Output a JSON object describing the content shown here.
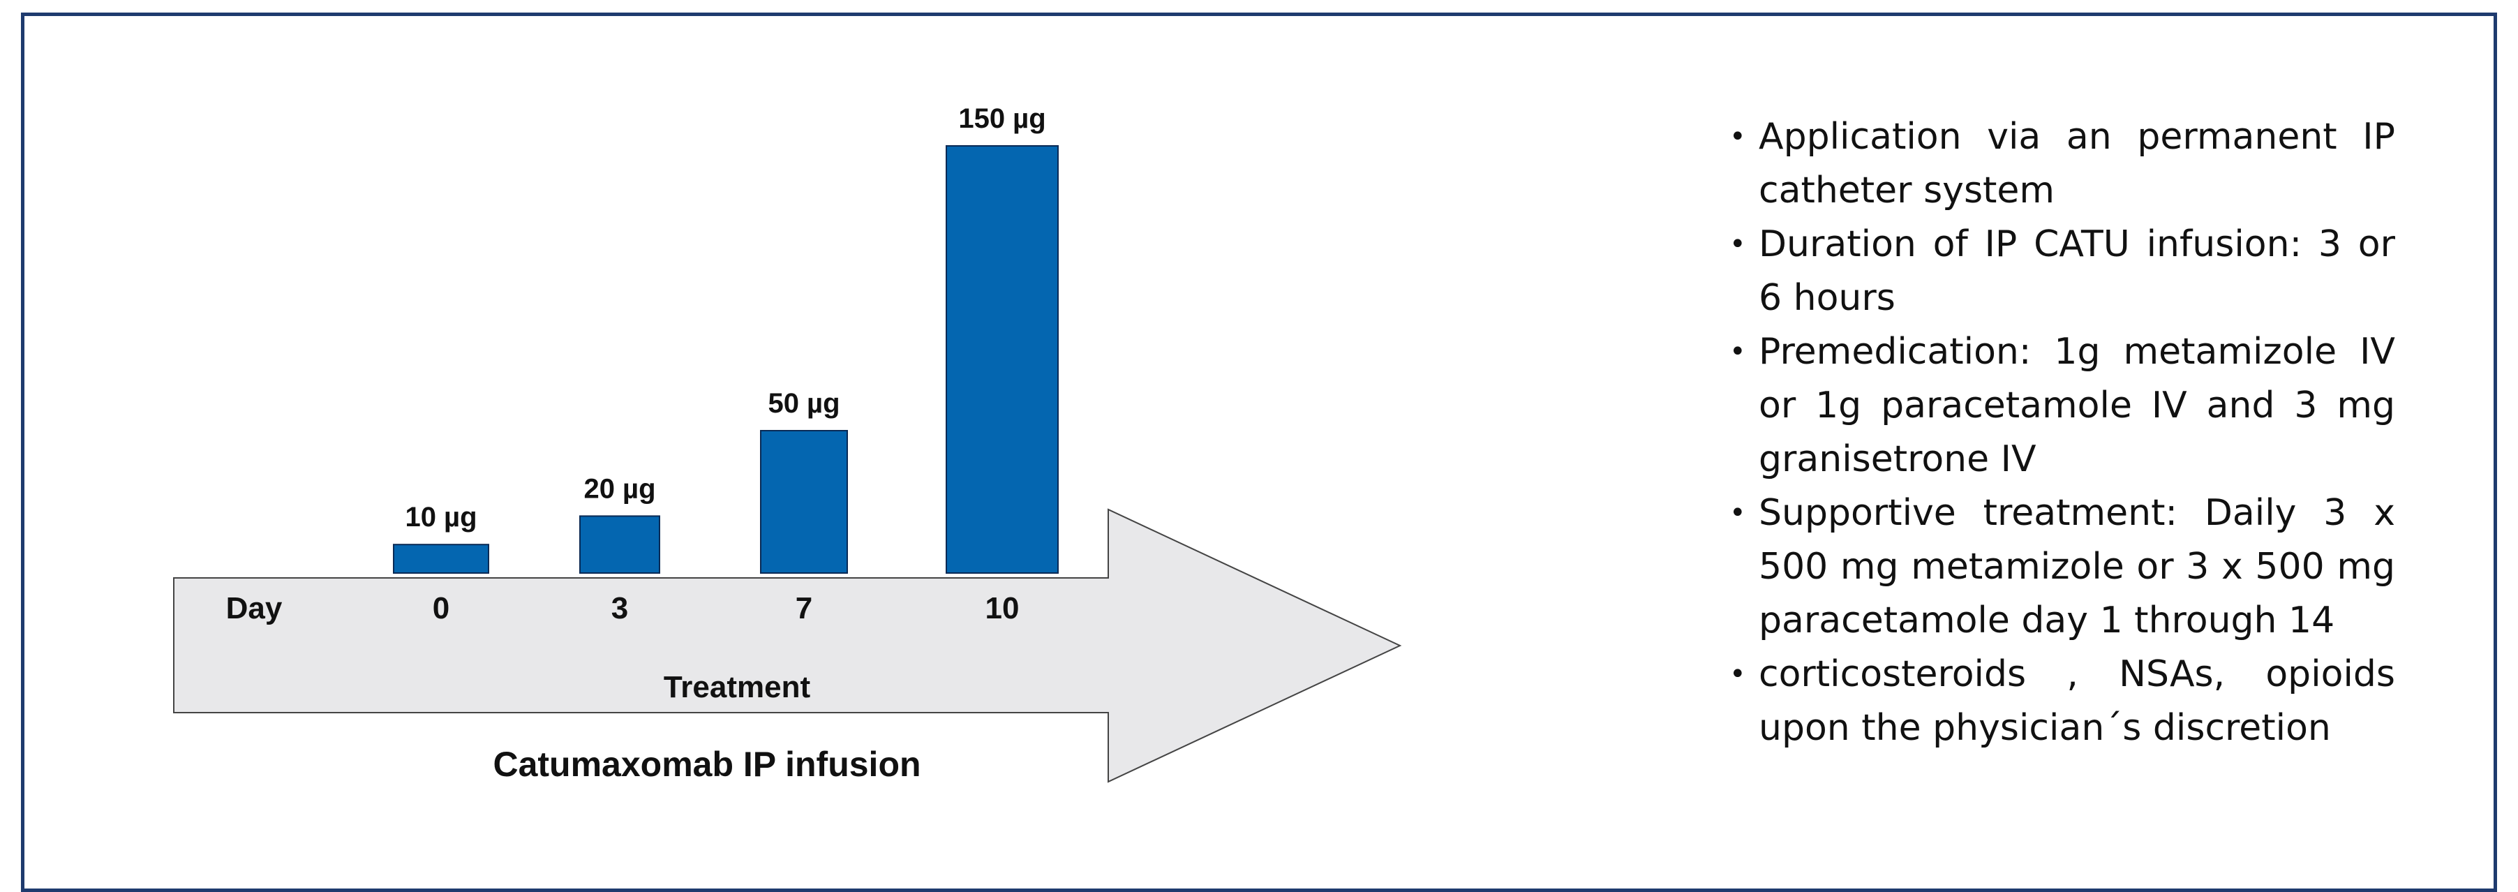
{
  "colors": {
    "bar": "#0466b0",
    "arrow_fill": "#e8e8ea",
    "frame": "#1f3b6e"
  },
  "diagram": {
    "row_label": "Day",
    "arrow_label": "Treatment",
    "caption": "Catumaxomab IP infusion"
  },
  "chart_data": {
    "type": "bar",
    "categories": [
      "0",
      "3",
      "7",
      "10"
    ],
    "values": [
      10,
      20,
      50,
      150
    ],
    "units": "µg",
    "data_labels": [
      "10 µg",
      "20 µg",
      "50 µg",
      "150 µg"
    ],
    "xlabel": "Day",
    "title": "Catumaxomab IP infusion"
  },
  "bullets": [
    "Application via an permanent IP catheter system",
    "Duration of  IP CATU infusion:  3 or 6 hours",
    "Premedication:  1g metamizole  IV or 1g  paracetamole IV and 3 mg granisetrone IV",
    "Supportive   treatment: Daily 3 x 500 mg metamizole or 3 x 500 mg paracetamole day 1 through 14",
    " corticosteroids  , NSAs,   opioids upon the physician´s  discretion"
  ]
}
